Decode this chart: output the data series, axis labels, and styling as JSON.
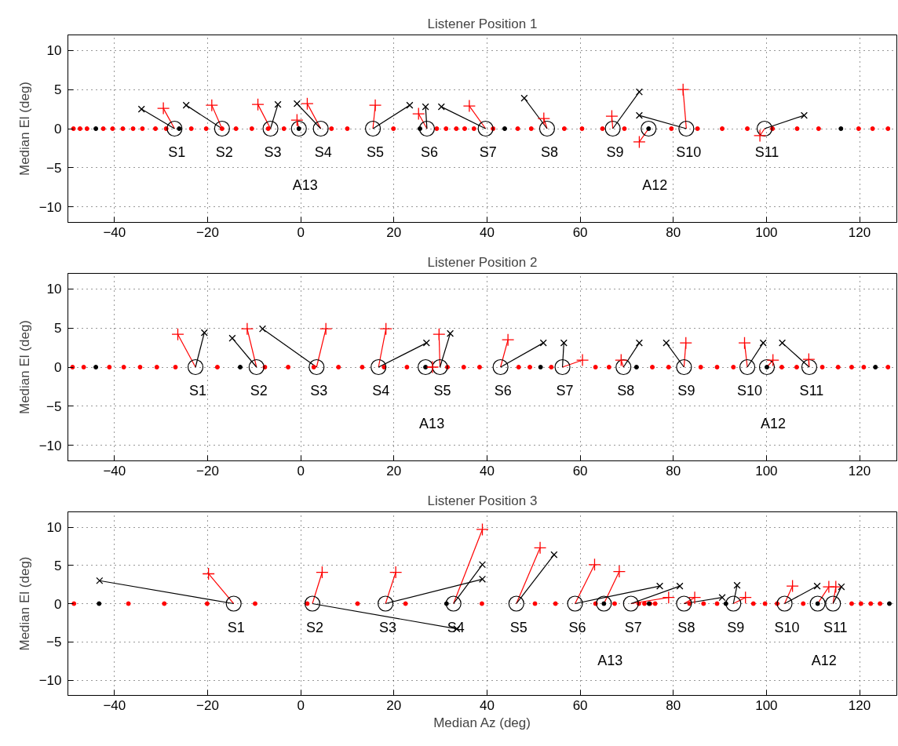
{
  "chart_data": [
    {
      "type": "scatter",
      "title": "Listener Position 1",
      "ylabel": "Median El (deg)",
      "xlim": [
        -50,
        128
      ],
      "ylim": [
        -12,
        12
      ],
      "xticks": [
        -40,
        -20,
        0,
        20,
        40,
        60,
        80,
        100,
        120
      ],
      "yticks": [
        -10,
        -5,
        0,
        5,
        10
      ],
      "grid": true,
      "series": [
        {
          "type": "line",
          "color": "#ff0000",
          "x": [
            -27.1,
            -29.5,
            null,
            -16.9,
            -19.1,
            null,
            -6.5,
            -9.2,
            null,
            -0.4,
            -0.8,
            null,
            4.3,
            1.4,
            null,
            15.5,
            16.0,
            null,
            27.1,
            25.3,
            null,
            39.7,
            36.2,
            null,
            52.9,
            52.2,
            null,
            67.0,
            66.8,
            null,
            74.7,
            72.7,
            null,
            82.8,
            82.1,
            null,
            99.6,
            98.6
          ],
          "values": [
            0,
            2.6,
            null,
            0,
            3.0,
            null,
            0,
            3.1,
            null,
            0,
            1.1,
            null,
            0,
            3.2,
            null,
            0,
            3.0,
            null,
            0,
            1.9,
            null,
            0,
            2.9,
            null,
            0,
            1.3,
            null,
            0,
            1.6,
            null,
            0,
            -1.7,
            null,
            0,
            5.0,
            null,
            0,
            -0.9
          ]
        },
        {
          "type": "line",
          "color": "#000000",
          "x": [
            -27.1,
            -34.2,
            null,
            -16.9,
            -24.6,
            null,
            -6.5,
            -4.9,
            null,
            4.3,
            -0.8,
            null,
            15.5,
            23.4,
            null,
            27.1,
            26.8,
            null,
            39.7,
            30.2,
            null,
            52.9,
            48.0,
            null,
            67.0,
            72.7,
            null,
            82.8,
            72.7,
            null,
            99.6,
            108.1
          ],
          "values": [
            0,
            2.5,
            null,
            0,
            3.0,
            null,
            0,
            3.1,
            null,
            0,
            3.2,
            null,
            0,
            3.0,
            null,
            0,
            2.8,
            null,
            0,
            2.8,
            null,
            0,
            3.9,
            null,
            0,
            4.7,
            null,
            0,
            1.7,
            null,
            0,
            1.7
          ]
        },
        {
          "type": "scatter",
          "marker": "dot",
          "color": "#ff0000",
          "x": [
            -48.8,
            -47.4,
            -45.9,
            -42.4,
            -40.4,
            -38.2,
            -36.0,
            -34.0,
            -31.2,
            -28.9,
            -23.5,
            -20.3,
            -16.9,
            -13.9,
            -10.5,
            -7.0,
            -3.6,
            6.6,
            10.0,
            19.9,
            29.2,
            31.2,
            33.4,
            35.2,
            37.2,
            41.3,
            46.6,
            49.5,
            56.6,
            60.4,
            64.8,
            69.5,
            79.6,
            85.2,
            90.5,
            95.9,
            101.3,
            106.6,
            111.2,
            119.8,
            122.8,
            126.1
          ],
          "values": [
            0,
            0,
            0,
            0,
            0,
            0,
            0,
            0,
            0,
            0,
            0,
            0,
            0,
            0,
            0,
            0,
            0,
            0,
            0,
            0,
            0,
            0,
            0,
            0,
            0,
            0,
            0,
            0,
            0,
            0,
            0,
            0,
            0,
            0,
            0,
            0,
            0,
            0,
            0,
            0,
            0,
            0
          ]
        },
        {
          "type": "scatter",
          "marker": "dot",
          "color": "#000000",
          "x": [
            -44.0,
            -26.1,
            -0.4,
            25.6,
            43.8,
            74.7,
            116.0
          ],
          "values": [
            0,
            0,
            0,
            0,
            0,
            0,
            0
          ]
        },
        {
          "type": "scatter",
          "marker": "circle",
          "color": "#000000",
          "x": [
            -27.1,
            -16.9,
            -6.5,
            -0.4,
            4.3,
            15.5,
            27.1,
            39.7,
            52.9,
            67.0,
            74.7,
            82.8,
            99.6
          ],
          "values": [
            0,
            0,
            0,
            0,
            0,
            0,
            0,
            0,
            0,
            0,
            0,
            0,
            0
          ]
        },
        {
          "type": "scatter",
          "marker": "cross",
          "color": "#ff0000",
          "x": [
            -29.5,
            -19.1,
            -9.2,
            -0.8,
            1.4,
            16.0,
            25.3,
            36.2,
            52.2,
            66.8,
            72.7,
            82.1,
            98.6
          ],
          "values": [
            2.6,
            3.0,
            3.1,
            1.1,
            3.2,
            3.0,
            1.9,
            2.9,
            1.3,
            1.6,
            -1.7,
            5.0,
            -0.9
          ]
        },
        {
          "type": "scatter",
          "marker": "x",
          "color": "#000000",
          "x": [
            -34.2,
            -24.6,
            -4.9,
            -0.8,
            23.4,
            26.8,
            30.2,
            48.0,
            72.7,
            72.7,
            108.1
          ],
          "values": [
            2.5,
            3.0,
            3.1,
            3.2,
            3.0,
            2.8,
            2.8,
            3.9,
            4.7,
            1.7,
            1.7
          ]
        }
      ],
      "annotations": [
        {
          "text": "S1",
          "x": -27.1,
          "y": 0
        },
        {
          "text": "S2",
          "x": -16.9,
          "y": 0
        },
        {
          "text": "S3",
          "x": -6.5,
          "y": 0
        },
        {
          "text": "S4",
          "x": 4.3,
          "y": 0
        },
        {
          "text": "S5",
          "x": 15.5,
          "y": 0
        },
        {
          "text": "S6",
          "x": 27.1,
          "y": 0
        },
        {
          "text": "S7",
          "x": 39.7,
          "y": 0
        },
        {
          "text": "S8",
          "x": 52.9,
          "y": 0
        },
        {
          "text": "S9",
          "x": 67.0,
          "y": 0
        },
        {
          "text": "S10",
          "x": 82.8,
          "y": 0
        },
        {
          "text": "S11",
          "x": 99.6,
          "y": 0
        },
        "A13",
        "A12"
      ]
    },
    {
      "type": "scatter",
      "title": "Listener Position 2",
      "ylabel": "Median El (deg)",
      "xlim": [
        -50,
        128
      ],
      "ylim": [
        -12,
        12
      ],
      "xticks": [
        -40,
        -20,
        0,
        20,
        40,
        60,
        80,
        100,
        120
      ],
      "yticks": [
        -10,
        -5,
        0,
        5,
        10
      ],
      "grid": true,
      "series": [
        {
          "type": "line",
          "color": "#ff0000",
          "x": [
            -22.6,
            -26.4,
            null,
            -9.5,
            -11.5,
            null,
            3.4,
            5.4,
            null,
            16.7,
            18.3,
            null,
            26.8,
            28.3,
            null,
            29.9,
            29.7,
            null,
            42.9,
            44.5,
            null,
            56.2,
            60.5,
            null,
            69.3,
            68.8,
            null,
            82.3,
            82.7,
            null,
            95.9,
            95.3,
            null,
            100.1,
            101.4,
            null,
            109.2,
            109.1
          ],
          "values": [
            0,
            4.2,
            null,
            0,
            4.9,
            null,
            0,
            4.9,
            null,
            0,
            4.9,
            null,
            0,
            0.0,
            null,
            0,
            4.2,
            null,
            0,
            3.5,
            null,
            0,
            0.9,
            null,
            0,
            0.9,
            null,
            0,
            3.1,
            null,
            0,
            3.1,
            null,
            0,
            0.9,
            null,
            0,
            1.0
          ]
        },
        {
          "type": "line",
          "color": "#000000",
          "x": [
            -22.6,
            -20.7,
            null,
            -9.5,
            -14.7,
            null,
            3.4,
            -8.2,
            null,
            16.7,
            27.0,
            null,
            29.9,
            32.1,
            null,
            42.9,
            52.1,
            null,
            56.2,
            56.5,
            null,
            69.3,
            72.7,
            null,
            82.3,
            78.5,
            null,
            95.9,
            99.3,
            null,
            109.2,
            103.4
          ],
          "values": [
            0,
            4.4,
            null,
            0,
            3.7,
            null,
            0,
            4.9,
            null,
            0,
            3.1,
            null,
            0,
            4.3,
            null,
            0,
            3.1,
            null,
            0,
            3.1,
            null,
            0,
            3.1,
            null,
            0,
            3.1,
            null,
            0,
            3.1,
            null,
            0,
            3.1
          ]
        },
        {
          "type": "scatter",
          "marker": "dot",
          "color": "#ff0000",
          "x": [
            -49.0,
            -46.6,
            -41.1,
            -38.0,
            -34.5,
            -30.9,
            -26.9,
            -17.9,
            -7.7,
            -2.7,
            2.8,
            8.1,
            13.2,
            17.9,
            22.8,
            31.5,
            35.0,
            38.4,
            46.8,
            49.2,
            53.8,
            63.3,
            66.2,
            75.5,
            79.0,
            85.9,
            89.4,
            92.9,
            103.3,
            106.5,
            112.0,
            115.4,
            118.3,
            120.9,
            126.1
          ],
          "values": [
            0,
            0,
            0,
            0,
            0,
            0,
            0,
            0,
            0,
            0,
            0,
            0,
            0,
            0,
            0,
            0,
            0,
            0,
            0,
            0,
            0,
            0,
            0,
            0,
            0,
            0,
            0,
            0,
            0,
            0,
            0,
            0,
            0,
            0,
            0
          ]
        },
        {
          "type": "scatter",
          "marker": "dot",
          "color": "#000000",
          "x": [
            -44.0,
            -13.0,
            26.8,
            51.5,
            72.1,
            100.1,
            123.4
          ],
          "values": [
            0,
            0,
            0,
            0,
            0,
            0,
            0
          ]
        },
        {
          "type": "scatter",
          "marker": "circle",
          "color": "#000000",
          "x": [
            -22.6,
            -9.5,
            3.4,
            16.7,
            26.8,
            29.9,
            42.9,
            56.2,
            69.3,
            82.3,
            95.9,
            100.1,
            109.2
          ],
          "values": [
            0,
            0,
            0,
            0,
            0,
            0,
            0,
            0,
            0,
            0,
            0,
            0,
            0
          ]
        },
        {
          "type": "scatter",
          "marker": "cross",
          "color": "#ff0000",
          "x": [
            -26.4,
            -11.5,
            5.4,
            18.3,
            28.3,
            29.7,
            44.5,
            60.5,
            68.8,
            82.7,
            95.3,
            101.4,
            109.1
          ],
          "values": [
            4.2,
            4.9,
            4.9,
            4.9,
            0.0,
            4.2,
            3.5,
            0.9,
            0.9,
            3.1,
            3.1,
            0.9,
            1.0
          ]
        },
        {
          "type": "scatter",
          "marker": "x",
          "color": "#000000",
          "x": [
            -20.7,
            -14.7,
            -8.2,
            27.0,
            32.1,
            52.1,
            56.5,
            72.7,
            78.5,
            99.3,
            103.4
          ],
          "values": [
            4.4,
            3.7,
            4.9,
            3.1,
            4.3,
            3.1,
            3.1,
            3.1,
            3.1,
            3.1,
            3.1
          ]
        }
      ],
      "annotations": [
        {
          "text": "S1",
          "x": -22.6,
          "y": 0
        },
        {
          "text": "S2",
          "x": -9.5,
          "y": 0
        },
        {
          "text": "S3",
          "x": 3.4,
          "y": 0
        },
        {
          "text": "S4",
          "x": 16.7,
          "y": 0
        },
        {
          "text": "S5",
          "x": 29.9,
          "y": 0
        },
        {
          "text": "S6",
          "x": 42.9,
          "y": 0
        },
        {
          "text": "S7",
          "x": 56.2,
          "y": 0
        },
        {
          "text": "S8",
          "x": 69.3,
          "y": 0
        },
        {
          "text": "S9",
          "x": 82.3,
          "y": 0
        },
        {
          "text": "S10",
          "x": 95.9,
          "y": 0
        },
        {
          "text": "S11",
          "x": 109.2,
          "y": 0
        },
        "A13",
        "A12"
      ]
    },
    {
      "type": "scatter",
      "title": "Listener Position 3",
      "xlabel": "Median Az (deg)",
      "ylabel": "Median El (deg)",
      "xlim": [
        -50,
        128
      ],
      "ylim": [
        -12,
        12
      ],
      "xticks": [
        -40,
        -20,
        0,
        20,
        40,
        60,
        80,
        100,
        120
      ],
      "yticks": [
        -10,
        -5,
        0,
        5,
        10
      ],
      "grid": true,
      "series": [
        {
          "type": "line",
          "color": "#ff0000",
          "x": [
            -14.4,
            -19.8,
            null,
            2.5,
            4.6,
            null,
            18.2,
            20.4,
            null,
            32.8,
            39.0,
            null,
            46.3,
            51.4,
            null,
            58.9,
            63.1,
            null,
            65.1,
            68.4,
            null,
            70.9,
            79.0,
            null,
            82.3,
            84.6,
            null,
            92.9,
            95.5,
            null,
            103.9,
            105.6,
            null,
            111.0,
            113.4,
            null,
            114.3,
            114.9
          ],
          "values": [
            0,
            3.9,
            null,
            0,
            4.1,
            null,
            0,
            4.1,
            null,
            0,
            9.7,
            null,
            0,
            7.3,
            null,
            0,
            5.1,
            null,
            0,
            4.2,
            null,
            0,
            0.8,
            null,
            0,
            0.8,
            null,
            0,
            0.8,
            null,
            0,
            2.3,
            null,
            0,
            2.2,
            null,
            0,
            2.2
          ]
        },
        {
          "type": "line",
          "color": "#000000",
          "x": [
            -14.4,
            -43.2,
            null,
            2.5,
            33.5,
            null,
            18.2,
            39.0,
            null,
            32.8,
            39.0,
            null,
            46.3,
            54.4,
            null,
            58.9,
            77.1,
            null,
            70.9,
            81.4,
            null,
            82.3,
            90.5,
            null,
            92.9,
            93.7,
            null,
            103.9,
            110.9,
            null,
            114.3,
            116.1
          ],
          "values": [
            0,
            3.0,
            null,
            0,
            -3.3,
            null,
            0,
            3.2,
            null,
            0,
            5.1,
            null,
            0,
            6.4,
            null,
            0,
            2.3,
            null,
            0,
            2.3,
            null,
            0,
            0.8,
            null,
            0,
            2.4,
            null,
            0,
            2.3,
            null,
            0,
            2.2
          ]
        },
        {
          "type": "scatter",
          "marker": "dot",
          "color": "#ff0000",
          "x": [
            -48.7,
            -37.0,
            -29.3,
            -20.1,
            -9.8,
            1.4,
            12.2,
            22.5,
            38.9,
            50.3,
            54.7,
            63.3,
            67.4,
            72.6,
            73.8,
            75.0,
            76.1,
            83.5,
            86.5,
            89.4,
            97.2,
            99.7,
            102.3,
            107.9,
            118.3,
            120.3,
            122.4,
            124.4
          ],
          "values": [
            0,
            0,
            0,
            0,
            0,
            0,
            0,
            0,
            0,
            0,
            0,
            0,
            0,
            0,
            0,
            0,
            0,
            0,
            0,
            0,
            0,
            0,
            0,
            0,
            0,
            0,
            0,
            0
          ]
        },
        {
          "type": "scatter",
          "marker": "dot",
          "color": "#000000",
          "x": [
            -43.3,
            31.3,
            65.1,
            74.8,
            91.3,
            111.0,
            126.4
          ],
          "values": [
            0,
            0,
            0,
            0,
            0,
            0,
            0
          ]
        },
        {
          "type": "scatter",
          "marker": "circle",
          "color": "#000000",
          "x": [
            -14.4,
            2.5,
            18.2,
            32.8,
            46.3,
            58.9,
            65.1,
            70.9,
            82.3,
            92.9,
            103.9,
            111.0,
            114.3
          ],
          "values": [
            0,
            0,
            0,
            0,
            0,
            0,
            0,
            0,
            0,
            0,
            0,
            0,
            0
          ]
        },
        {
          "type": "scatter",
          "marker": "cross",
          "color": "#ff0000",
          "x": [
            -19.8,
            4.6,
            20.4,
            39.0,
            51.4,
            63.1,
            68.4,
            79.0,
            84.6,
            95.5,
            105.6,
            113.4,
            114.9
          ],
          "values": [
            3.9,
            4.1,
            4.1,
            9.7,
            7.3,
            5.1,
            4.2,
            0.8,
            0.8,
            0.8,
            2.3,
            2.2,
            2.2
          ]
        },
        {
          "type": "scatter",
          "marker": "x",
          "color": "#000000",
          "x": [
            -43.2,
            33.5,
            39.0,
            39.0,
            54.4,
            77.1,
            81.4,
            90.5,
            93.7,
            110.9,
            116.1
          ],
          "values": [
            3.0,
            -3.3,
            3.2,
            5.1,
            6.4,
            2.3,
            2.3,
            0.8,
            2.4,
            2.3,
            2.2
          ]
        }
      ],
      "annotations": [
        {
          "text": "S1",
          "x": -14.4,
          "y": 0
        },
        {
          "text": "S2",
          "x": 2.5,
          "y": 0
        },
        {
          "text": "S3",
          "x": 18.2,
          "y": 0
        },
        {
          "text": "S4",
          "x": 32.8,
          "y": 0
        },
        {
          "text": "S5",
          "x": 46.3,
          "y": 0
        },
        {
          "text": "S6",
          "x": 58.9,
          "y": 0
        },
        {
          "text": "S7",
          "x": 70.9,
          "y": 0
        },
        {
          "text": "S8",
          "x": 82.3,
          "y": 0
        },
        {
          "text": "S9",
          "x": 92.9,
          "y": 0
        },
        {
          "text": "S10",
          "x": 103.9,
          "y": 0
        },
        {
          "text": "S11",
          "x": 114.3,
          "y": 0
        },
        "A13",
        "A12"
      ]
    }
  ]
}
